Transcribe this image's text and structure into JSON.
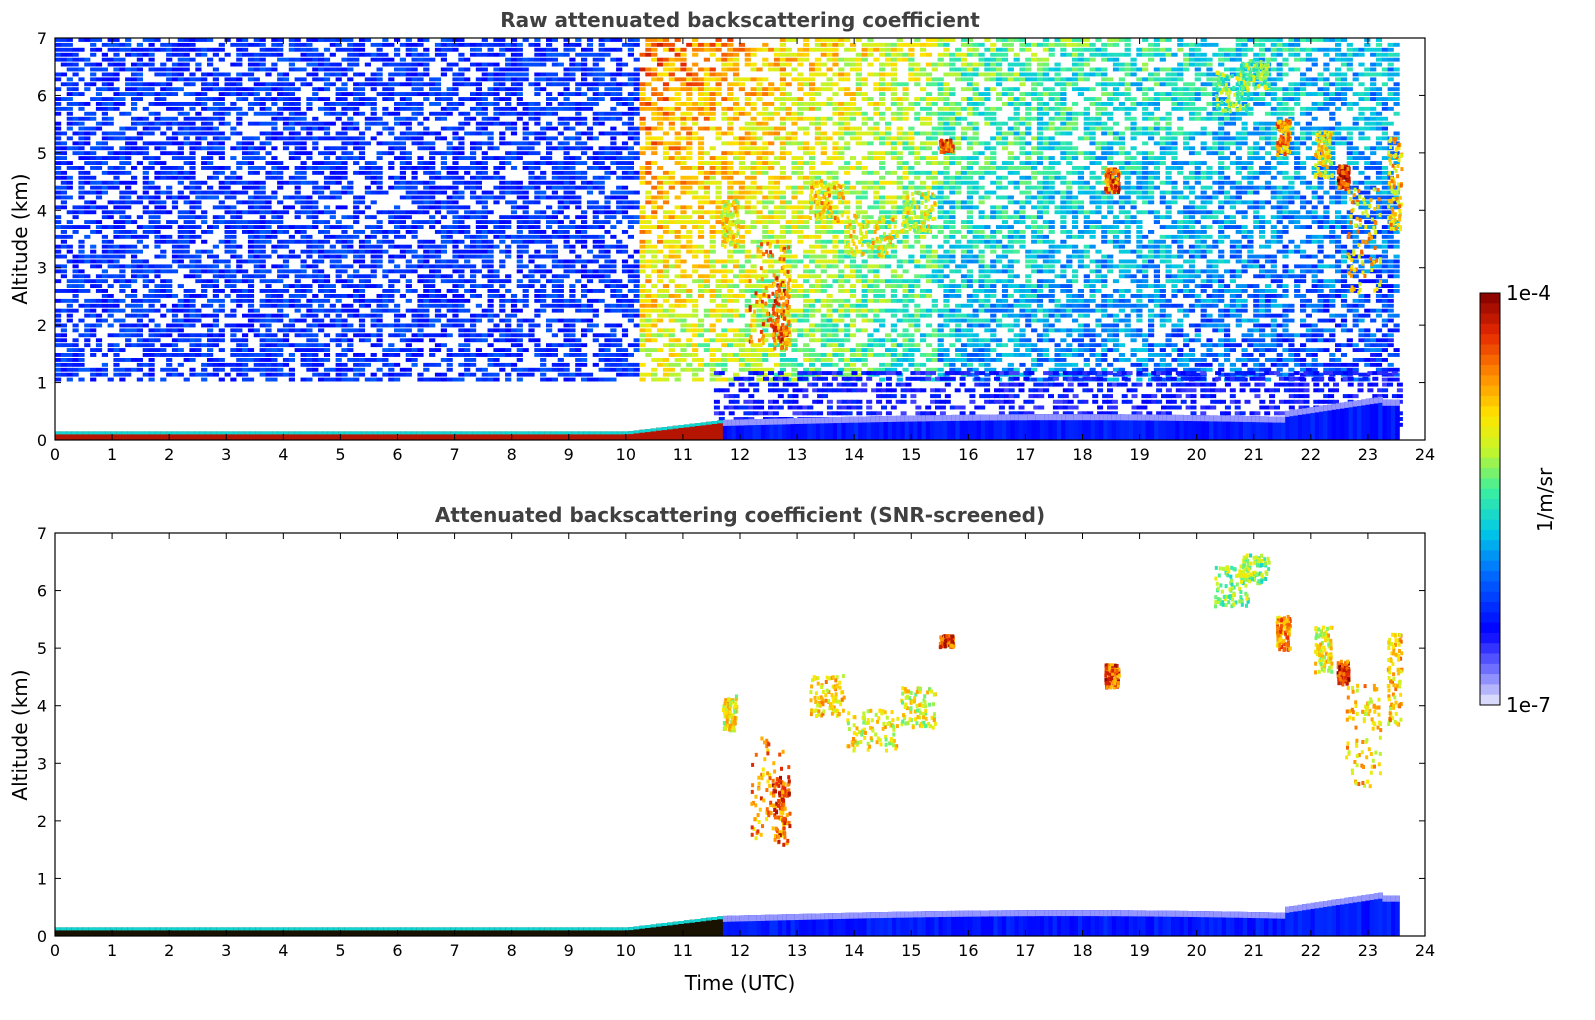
{
  "chart_data": [
    {
      "type": "heatmap",
      "title": "Raw attenuated backscattering coefficient",
      "ylabel": "Altitude (km)",
      "xlabel": "",
      "xlim": [
        0,
        24
      ],
      "ylim": [
        0,
        7
      ],
      "xticks": [
        "0",
        "1",
        "2",
        "3",
        "4",
        "5",
        "6",
        "7",
        "8",
        "9",
        "10",
        "11",
        "12",
        "13",
        "14",
        "15",
        "16",
        "17",
        "18",
        "19",
        "20",
        "21",
        "22",
        "23",
        "24"
      ],
      "yticks": [
        "0",
        "1",
        "2",
        "3",
        "4",
        "5",
        "6",
        "7"
      ],
      "data_end_hour": 23.55,
      "surface_layer_top_km": 0.15,
      "noise": true,
      "cloud_patches": [
        {
          "t": 12.5,
          "alt": 2.6,
          "dt": 0.35,
          "dalt": 0.9,
          "level": 0.92
        },
        {
          "t": 12.7,
          "alt": 2.2,
          "dt": 0.15,
          "dalt": 0.6,
          "level": 0.97
        },
        {
          "t": 11.8,
          "alt": 3.8,
          "dt": 0.15,
          "dalt": 0.4,
          "level": 0.8
        },
        {
          "t": 13.5,
          "alt": 4.2,
          "dt": 0.3,
          "dalt": 0.35,
          "level": 0.85
        },
        {
          "t": 14.3,
          "alt": 3.6,
          "dt": 0.45,
          "dalt": 0.35,
          "level": 0.8
        },
        {
          "t": 15.1,
          "alt": 4.0,
          "dt": 0.3,
          "dalt": 0.35,
          "level": 0.78
        },
        {
          "t": 15.6,
          "alt": 5.15,
          "dt": 0.12,
          "dalt": 0.1,
          "level": 1.0
        },
        {
          "t": 18.5,
          "alt": 4.55,
          "dt": 0.12,
          "dalt": 0.2,
          "level": 0.98
        },
        {
          "t": 20.6,
          "alt": 6.1,
          "dt": 0.3,
          "dalt": 0.35,
          "level": 0.7
        },
        {
          "t": 21.0,
          "alt": 6.4,
          "dt": 0.25,
          "dalt": 0.25,
          "level": 0.7
        },
        {
          "t": 21.5,
          "alt": 5.3,
          "dt": 0.12,
          "dalt": 0.3,
          "level": 0.9
        },
        {
          "t": 22.2,
          "alt": 5.0,
          "dt": 0.15,
          "dalt": 0.4,
          "level": 0.8
        },
        {
          "t": 22.55,
          "alt": 4.6,
          "dt": 0.1,
          "dalt": 0.2,
          "level": 1.0
        },
        {
          "t": 22.9,
          "alt": 3.5,
          "dt": 0.3,
          "dalt": 0.9,
          "level": 0.85
        },
        {
          "t": 23.45,
          "alt": 4.5,
          "dt": 0.12,
          "dalt": 0.8,
          "level": 0.85
        }
      ]
    },
    {
      "type": "heatmap",
      "title": "Attenuated backscattering coefficient (SNR-screened)",
      "ylabel": "Altitude (km)",
      "xlabel": "Time (UTC)",
      "xlim": [
        0,
        24
      ],
      "ylim": [
        0,
        7
      ],
      "xticks": [
        "0",
        "1",
        "2",
        "3",
        "4",
        "5",
        "6",
        "7",
        "8",
        "9",
        "10",
        "11",
        "12",
        "13",
        "14",
        "15",
        "16",
        "17",
        "18",
        "19",
        "20",
        "21",
        "22",
        "23",
        "24"
      ],
      "yticks": [
        "0",
        "1",
        "2",
        "3",
        "4",
        "5",
        "6",
        "7"
      ],
      "data_end_hour": 23.55,
      "surface_layer_top_km": 0.15,
      "noise": false,
      "cloud_patches": [
        {
          "t": 12.5,
          "alt": 2.6,
          "dt": 0.35,
          "dalt": 0.9,
          "level": 0.92
        },
        {
          "t": 12.7,
          "alt": 2.2,
          "dt": 0.15,
          "dalt": 0.6,
          "level": 0.97
        },
        {
          "t": 11.8,
          "alt": 3.9,
          "dt": 0.12,
          "dalt": 0.3,
          "level": 0.8
        },
        {
          "t": 13.5,
          "alt": 4.2,
          "dt": 0.3,
          "dalt": 0.35,
          "level": 0.85
        },
        {
          "t": 14.3,
          "alt": 3.6,
          "dt": 0.45,
          "dalt": 0.35,
          "level": 0.8
        },
        {
          "t": 15.1,
          "alt": 4.0,
          "dt": 0.3,
          "dalt": 0.35,
          "level": 0.78
        },
        {
          "t": 15.6,
          "alt": 5.15,
          "dt": 0.12,
          "dalt": 0.1,
          "level": 1.0
        },
        {
          "t": 18.5,
          "alt": 4.55,
          "dt": 0.12,
          "dalt": 0.2,
          "level": 0.98
        },
        {
          "t": 20.6,
          "alt": 6.1,
          "dt": 0.3,
          "dalt": 0.35,
          "level": 0.7
        },
        {
          "t": 21.0,
          "alt": 6.4,
          "dt": 0.25,
          "dalt": 0.25,
          "level": 0.7
        },
        {
          "t": 21.5,
          "alt": 5.3,
          "dt": 0.12,
          "dalt": 0.3,
          "level": 0.9
        },
        {
          "t": 22.2,
          "alt": 5.0,
          "dt": 0.15,
          "dalt": 0.4,
          "level": 0.8
        },
        {
          "t": 22.55,
          "alt": 4.6,
          "dt": 0.1,
          "dalt": 0.2,
          "level": 1.0
        },
        {
          "t": 22.9,
          "alt": 3.5,
          "dt": 0.3,
          "dalt": 0.9,
          "level": 0.85
        },
        {
          "t": 23.45,
          "alt": 4.5,
          "dt": 0.12,
          "dalt": 0.8,
          "level": 0.85
        }
      ]
    }
  ],
  "colorbar": {
    "label": "1/m/sr",
    "max_label": "1e-4",
    "min_label": "1e-7",
    "colormap": "jet-like with white at minimum"
  }
}
